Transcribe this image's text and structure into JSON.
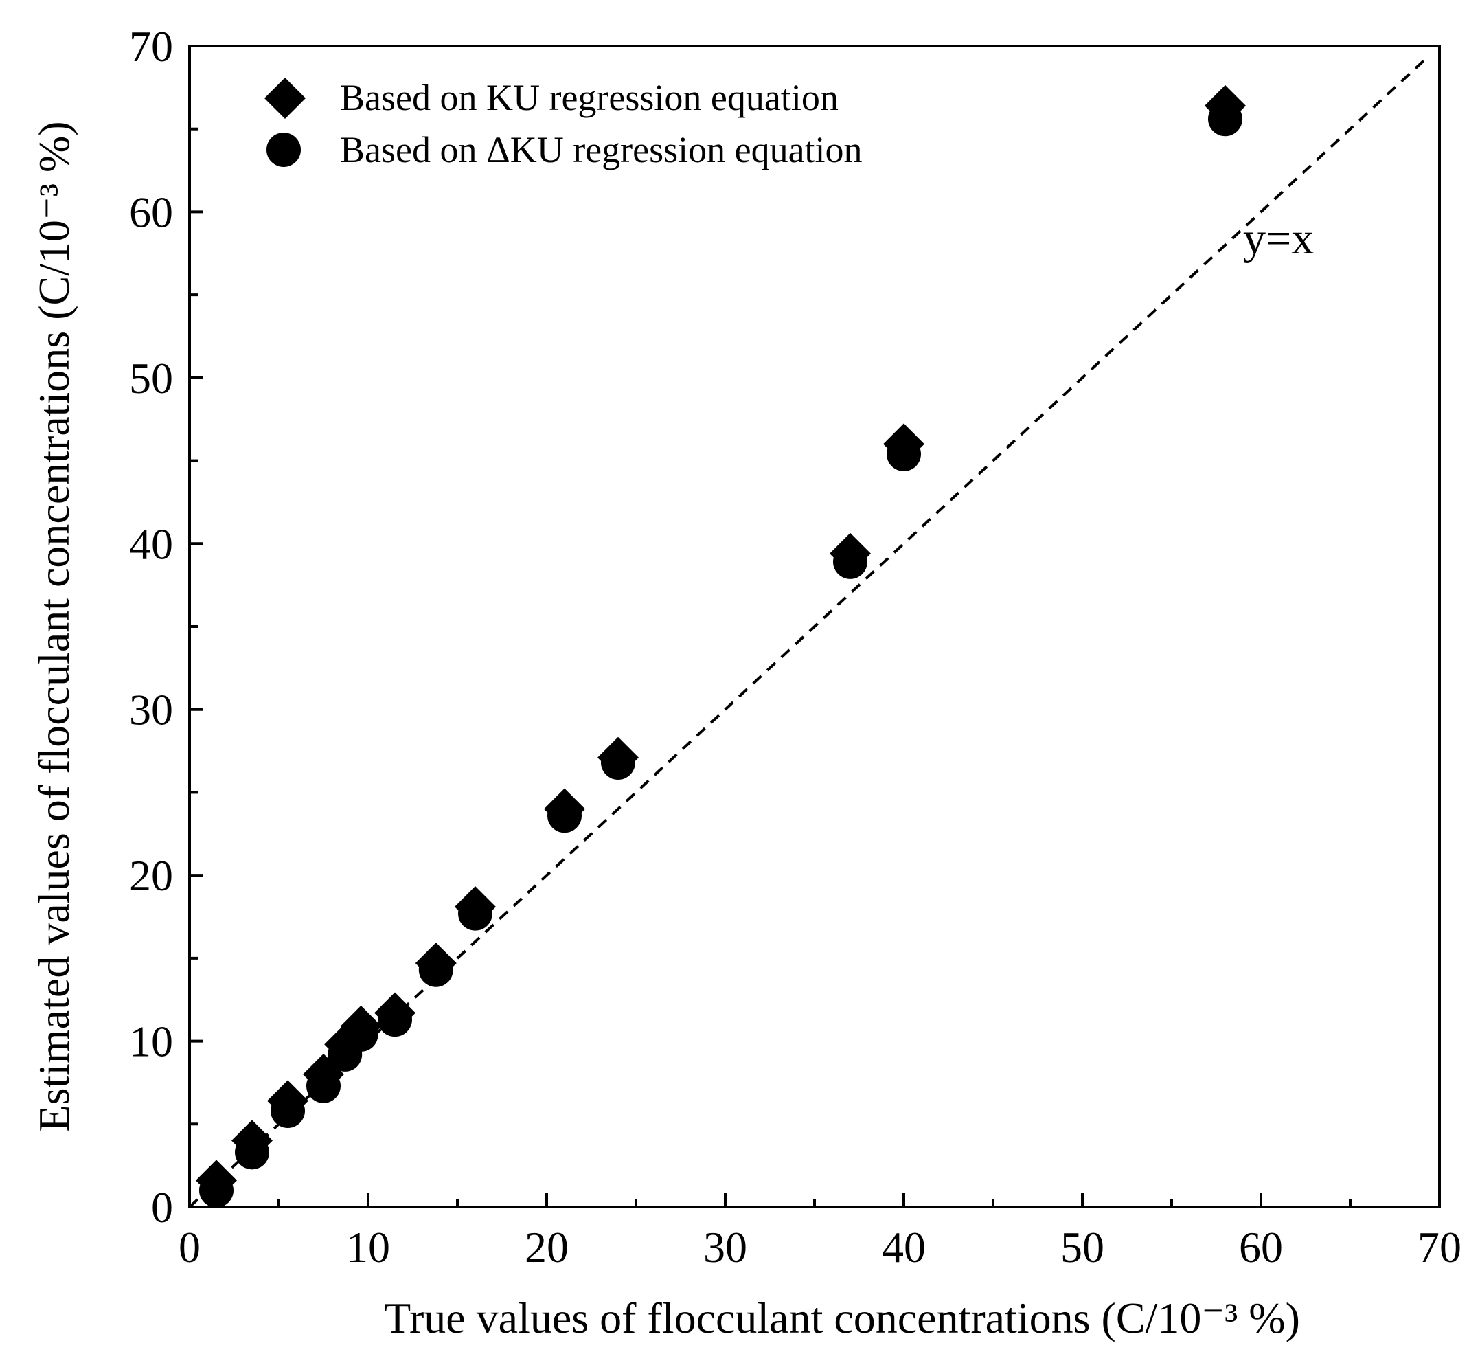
{
  "chart_data": {
    "type": "scatter",
    "xlabel": "True values of flocculant concentrations (C/10⁻³ %)",
    "ylabel": "Estimated values of flocculant concentrations (C/10⁻³ %)",
    "xlim": [
      0,
      70
    ],
    "ylim": [
      0,
      70
    ],
    "xticks": [
      0,
      10,
      20,
      30,
      40,
      50,
      60,
      70
    ],
    "yticks": [
      0,
      10,
      20,
      30,
      40,
      50,
      60,
      70
    ],
    "grid": false,
    "legend_position": "top-left",
    "series": [
      {
        "name": "Based on KU regression equation",
        "marker": "diamond",
        "color": "#000000",
        "x": [
          1.5,
          3.5,
          5.5,
          7.5,
          8.7,
          9.6,
          11.5,
          13.8,
          16,
          21,
          24,
          37,
          40,
          58
        ],
        "y": [
          1.6,
          4.0,
          6.4,
          8.0,
          9.8,
          10.9,
          11.7,
          14.7,
          18.1,
          24.0,
          27.1,
          39.4,
          46.0,
          66.4
        ]
      },
      {
        "name": "Based on ΔKU regression equation",
        "marker": "circle",
        "color": "#000000",
        "x": [
          1.5,
          3.5,
          5.5,
          7.5,
          8.7,
          9.6,
          11.5,
          13.8,
          16,
          21,
          24,
          37,
          40,
          58
        ],
        "y": [
          1.0,
          3.3,
          5.8,
          7.3,
          9.2,
          10.4,
          11.3,
          14.3,
          17.7,
          23.6,
          26.8,
          38.9,
          45.4,
          65.6
        ]
      }
    ],
    "reference_line": {
      "label": "y=x",
      "style": "dashed"
    }
  }
}
